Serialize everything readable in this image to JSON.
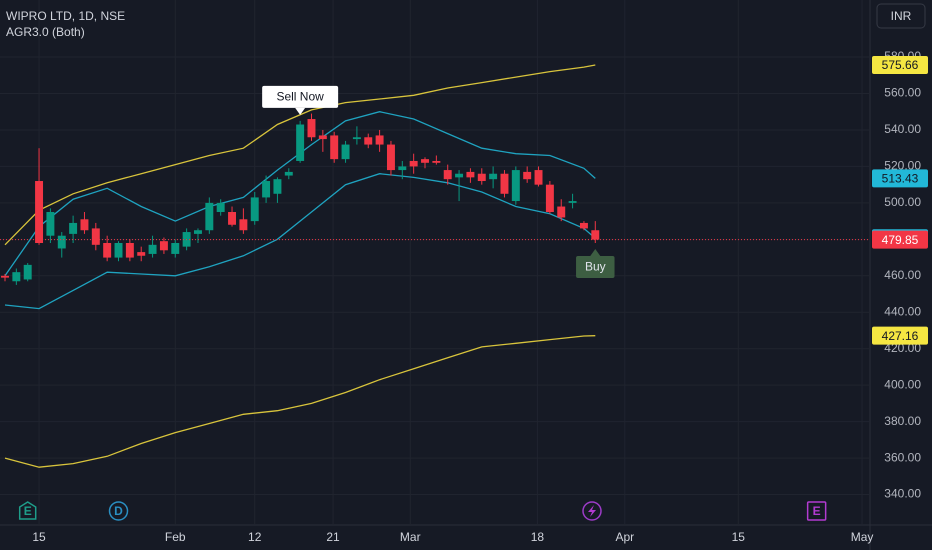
{
  "chart_data": {
    "type": "candlestick",
    "title": "WIPRO LTD, 1D, NSE",
    "subtitle": "AGR3.0 (Both)",
    "currency": "INR",
    "up_color": "#089981",
    "down_color": "#f23645",
    "x": [
      0,
      1,
      2,
      3,
      4,
      5,
      6,
      7,
      8,
      9,
      10,
      11,
      12,
      13,
      14,
      15,
      16,
      17,
      18,
      19,
      20,
      21,
      22,
      23,
      24,
      25,
      26,
      27,
      28,
      29,
      30,
      31,
      32,
      33,
      34,
      35,
      36,
      37,
      38,
      39,
      40,
      41,
      42,
      43,
      44,
      45,
      46,
      47,
      48,
      49,
      50,
      51,
      52
    ],
    "open": [
      460,
      457,
      458,
      512,
      482,
      475,
      483,
      491,
      486,
      478,
      470,
      478,
      473,
      472,
      479,
      472,
      476,
      483,
      485,
      495,
      495,
      491,
      490,
      503,
      505,
      515,
      523,
      546,
      537,
      537,
      524,
      535,
      536,
      537,
      532,
      518,
      523,
      524,
      523,
      518,
      514,
      517,
      516,
      513,
      516,
      501,
      517,
      518,
      510,
      498,
      500,
      489,
      485
    ],
    "high": [
      461,
      464,
      467,
      530,
      497,
      484,
      493,
      495,
      489,
      482,
      479,
      480,
      476,
      482,
      481,
      480,
      486,
      486,
      503,
      502,
      498,
      497,
      506,
      515,
      514,
      519,
      545,
      549,
      540,
      539,
      534,
      542,
      538,
      540,
      534,
      523,
      527,
      525,
      526,
      521,
      518,
      519,
      519,
      520,
      518,
      520,
      520,
      520,
      512,
      502,
      505,
      490,
      490
    ],
    "low": [
      457,
      455,
      457,
      477,
      478,
      470,
      478,
      483,
      474,
      468,
      468,
      468,
      468,
      470,
      472,
      470,
      474,
      478,
      483,
      493,
      487,
      483,
      488,
      500,
      500,
      513,
      522,
      534,
      528,
      522,
      522,
      532,
      530,
      528,
      515,
      513,
      516,
      519,
      521,
      510,
      501,
      511,
      510,
      508,
      503,
      499,
      511,
      509,
      494,
      490,
      497,
      485,
      478
    ],
    "close": [
      459,
      462,
      466,
      478,
      495,
      482,
      489,
      485,
      477,
      470,
      478,
      470,
      471,
      477,
      474,
      478,
      484,
      485,
      500,
      500,
      488,
      485,
      503,
      512,
      513,
      517,
      543,
      536,
      535,
      524,
      532,
      536,
      532,
      532,
      518,
      520,
      520,
      522,
      522,
      513,
      516,
      514,
      512,
      516,
      505,
      518,
      513,
      510,
      495,
      492,
      501,
      486,
      479.85
    ],
    "series": [
      {
        "color": "#d8c43c",
        "label_color": "#f5e642",
        "x": [
          0,
          3,
          6,
          9,
          12,
          15,
          18,
          21,
          24,
          27,
          30,
          33,
          36,
          39,
          42,
          45,
          48,
          51,
          52
        ],
        "values": [
          477,
          496,
          505,
          511,
          516,
          521,
          526,
          530,
          543,
          551,
          555,
          557,
          559,
          563,
          566,
          569,
          572,
          574.5,
          575.66
        ]
      },
      {
        "color": "#1fa3c0",
        "label_color": "#22b8d8",
        "x": [
          0,
          3,
          6,
          9,
          12,
          15,
          18,
          21,
          24,
          27,
          30,
          33,
          36,
          39,
          42,
          45,
          48,
          51,
          52
        ],
        "values": [
          460,
          487,
          502,
          508,
          498,
          490,
          498,
          503,
          518,
          532,
          545,
          550,
          546,
          538,
          530,
          527,
          526,
          519,
          513.43
        ]
      },
      {
        "color": "#1fa3c0",
        "label_color": "#22b8d8",
        "x": [
          0,
          3,
          6,
          9,
          12,
          15,
          18,
          21,
          24,
          27,
          30,
          33,
          36,
          39,
          42,
          45,
          48,
          51,
          52
        ],
        "values": [
          444,
          442,
          452,
          462,
          461,
          460,
          465,
          471,
          480,
          495,
          510,
          516,
          514,
          511,
          506,
          498,
          494,
          486,
          480.61
        ]
      },
      {
        "color": "#d8c43c",
        "label_color": "#f5e642",
        "x": [
          0,
          3,
          6,
          9,
          12,
          15,
          18,
          21,
          24,
          27,
          30,
          33,
          36,
          39,
          42,
          45,
          48,
          51,
          52
        ],
        "values": [
          360,
          355,
          357,
          361,
          368,
          374,
          379,
          384,
          386,
          390,
          396,
          403,
          409,
          415,
          421,
          423,
          425,
          427,
          427.16
        ]
      }
    ],
    "annotations": [
      {
        "text": "Sell Now",
        "x": 26,
        "side": "above",
        "color": "#ffffff",
        "text_color": "#131722"
      },
      {
        "text": "Buy",
        "x": 52,
        "side": "below",
        "color": "#3d5e42",
        "text_color": "#e0e3eb"
      }
    ],
    "events": [
      {
        "label": "E",
        "x": 2,
        "color": "#1e9e8a"
      },
      {
        "label": "D",
        "x": 10,
        "color": "#2a8fc2"
      },
      {
        "label": "E",
        "x": 71.5,
        "color": "#b23bd1"
      }
    ],
    "xlim": [
      -0.44,
      76.2
    ],
    "xticks": [
      {
        "value": 3,
        "label": "15"
      },
      {
        "value": 15,
        "label": "Feb"
      },
      {
        "value": 22,
        "label": "12"
      },
      {
        "value": 28.9,
        "label": "21"
      },
      {
        "value": 35.7,
        "label": "Mar"
      },
      {
        "value": 46.9,
        "label": "18"
      },
      {
        "value": 54.6,
        "label": "Apr"
      },
      {
        "value": 64.6,
        "label": "15"
      },
      {
        "value": 75.5,
        "label": "May"
      }
    ],
    "ylim": [
      323.3,
      611.3
    ],
    "yticks": [
      {
        "value": 340,
        "label": "340.00"
      },
      {
        "value": 360,
        "label": "360.00"
      },
      {
        "value": 380,
        "label": "380.00"
      },
      {
        "value": 400,
        "label": "400.00"
      },
      {
        "value": 420,
        "label": "420.00"
      },
      {
        "value": 440,
        "label": "440.00"
      },
      {
        "value": 460,
        "label": "460.00"
      },
      {
        "value": 480,
        "label": "480.00"
      },
      {
        "value": 500,
        "label": "500.00"
      },
      {
        "value": 520,
        "label": "520.00"
      },
      {
        "value": 540,
        "label": "540.00"
      },
      {
        "value": 560,
        "label": "560.00"
      },
      {
        "value": 580,
        "label": "580.00"
      }
    ],
    "grid": true
  }
}
